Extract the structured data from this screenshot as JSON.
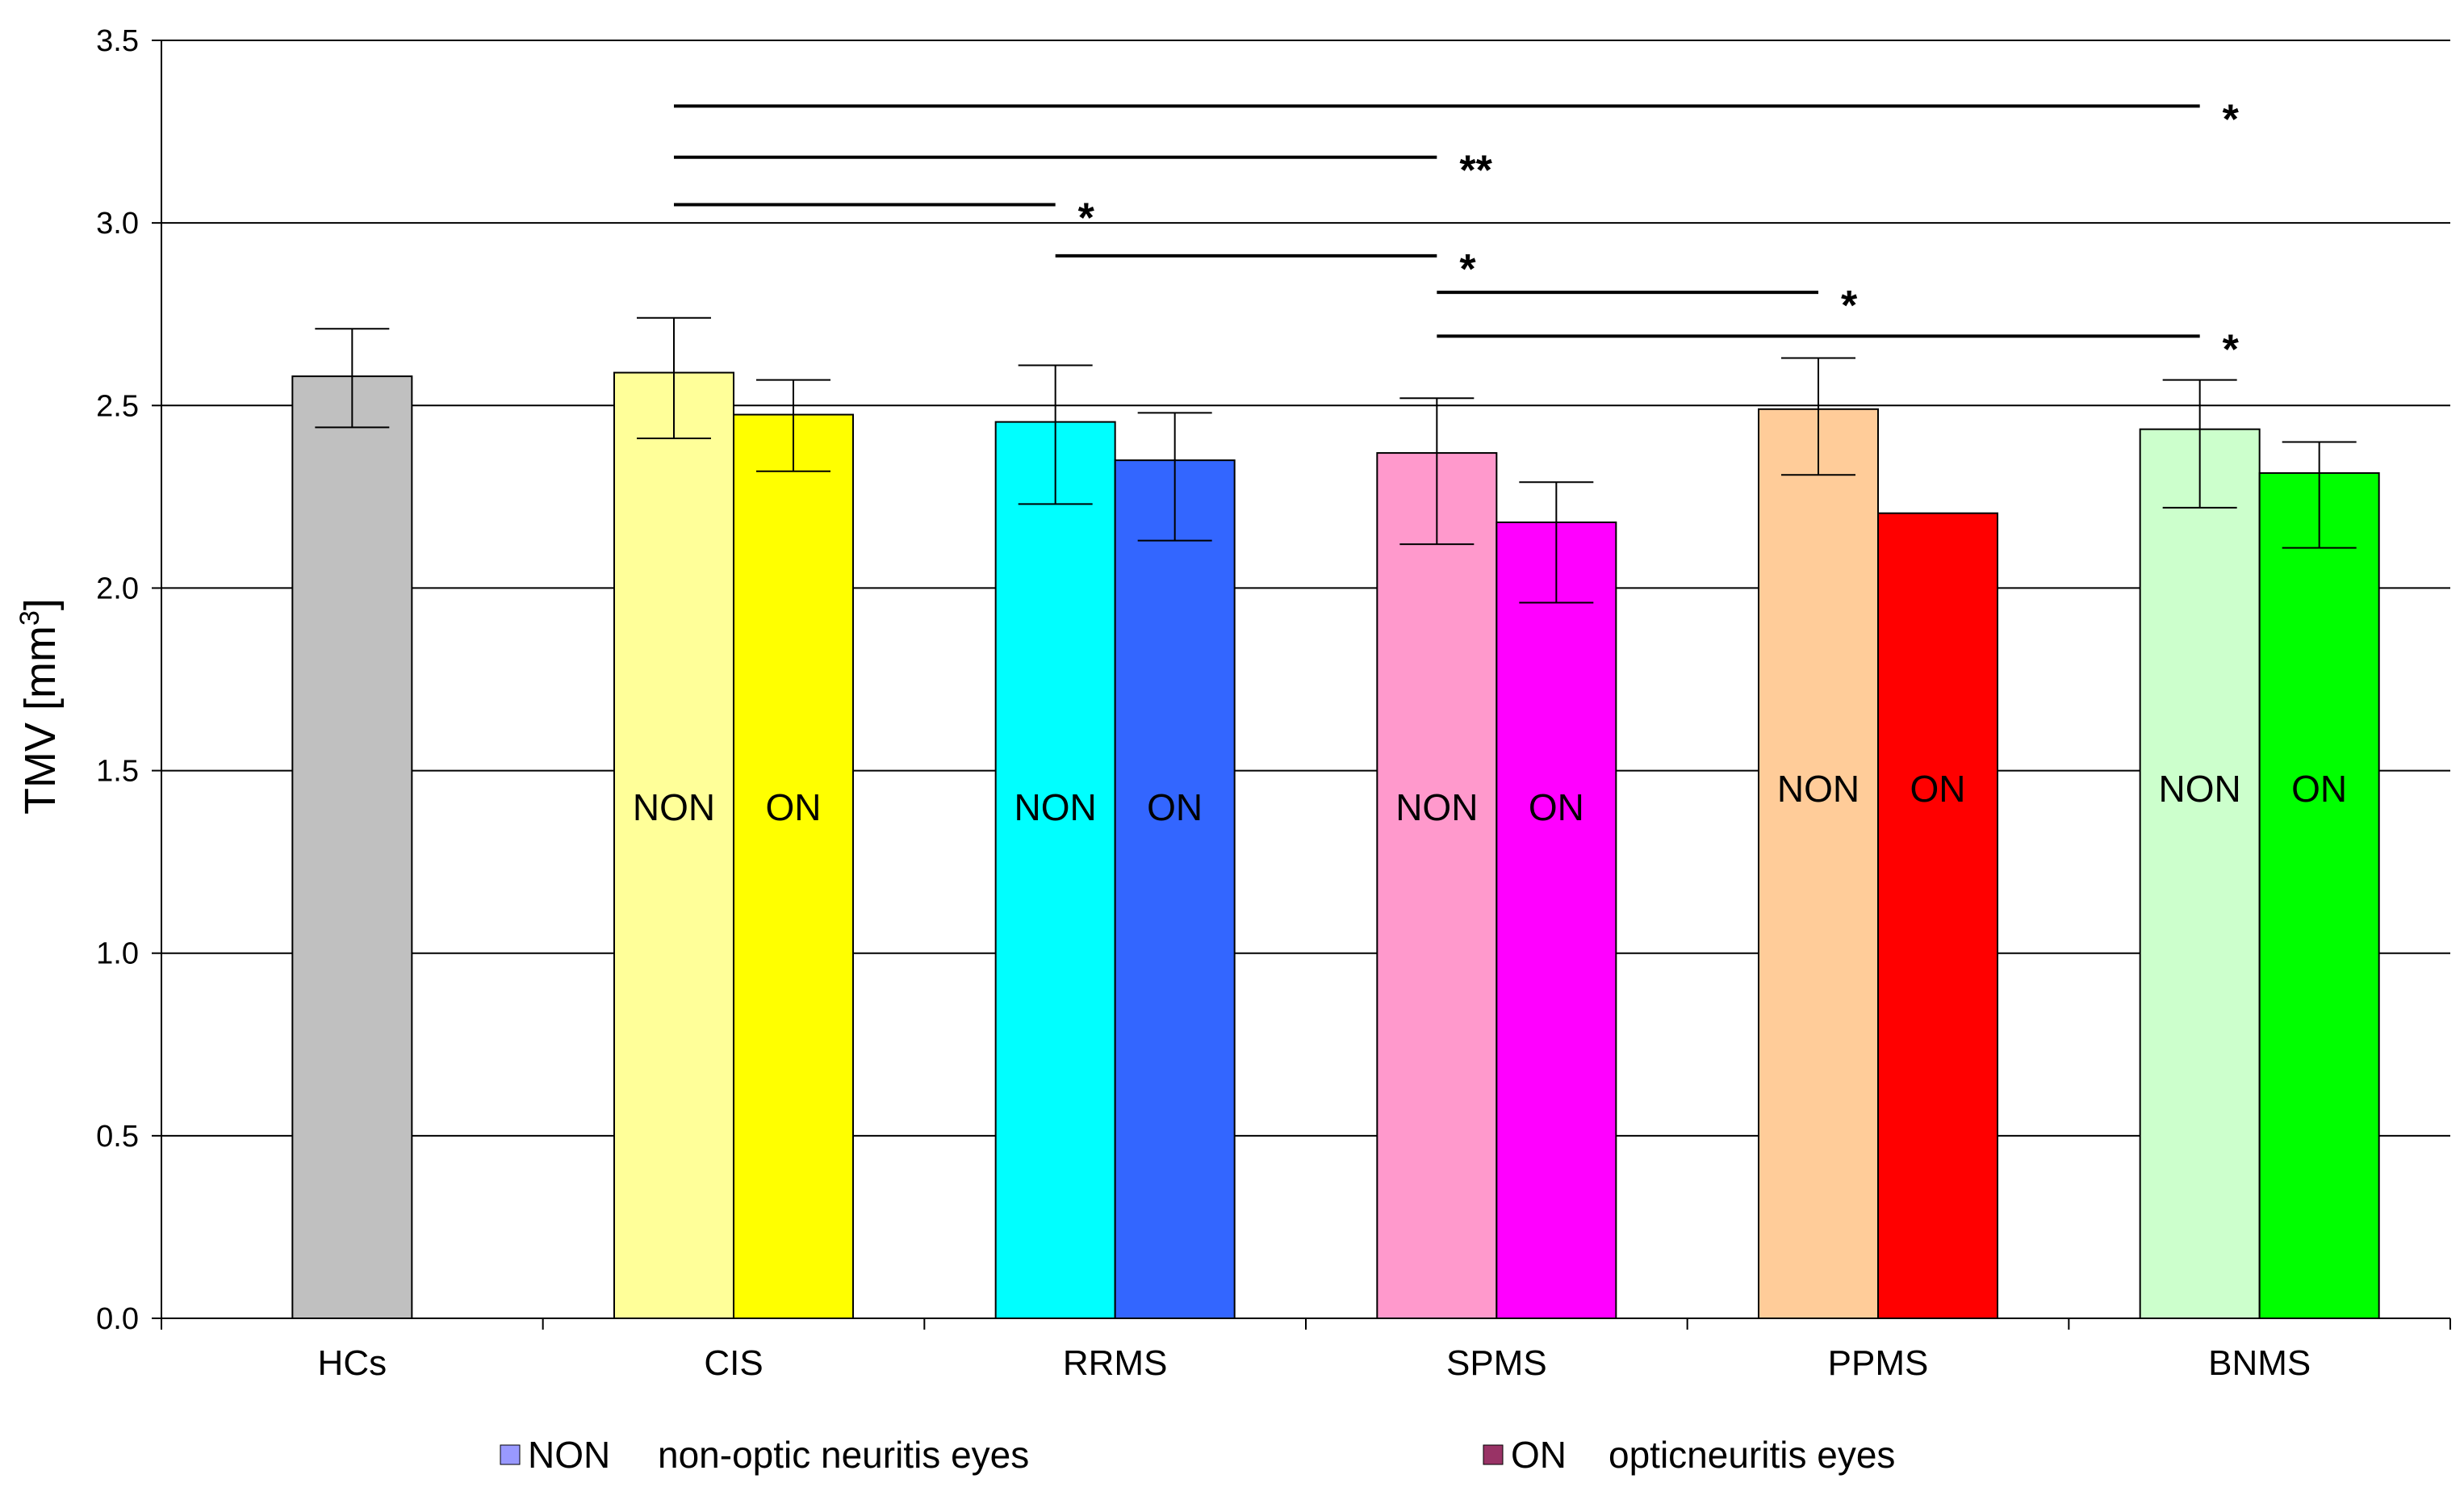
{
  "chart_data": {
    "type": "bar",
    "ylabel": "TMV [mm",
    "ylabel_sup": "3",
    "ylabel_close": "]",
    "ylim": [
      0,
      3.5
    ],
    "yticks": [
      0,
      0.5,
      1.0,
      1.5,
      2.0,
      2.5,
      3.0,
      3.5
    ],
    "ytick_labels": [
      "0.0",
      "0.5",
      "1.0",
      "1.5",
      "2.0",
      "2.5",
      "3.0",
      "3.5"
    ],
    "grid": true,
    "categories": [
      "HCs",
      "CIS",
      "RRMS",
      "SPMS",
      "PPMS",
      "BNMS"
    ],
    "bars": [
      {
        "group": "HCs",
        "label": "",
        "value": 2.58,
        "err_low": 2.44,
        "err_high": 2.71,
        "color": "#c0c0c0"
      },
      {
        "group": "CIS",
        "label": "NON",
        "value": 2.59,
        "err_low": 2.41,
        "err_high": 2.74,
        "color": "#ffff99"
      },
      {
        "group": "CIS",
        "label": "ON",
        "value": 2.475,
        "err_low": 2.32,
        "err_high": 2.57,
        "color": "#ffff00"
      },
      {
        "group": "RRMS",
        "label": "NON",
        "value": 2.455,
        "err_low": 2.23,
        "err_high": 2.61,
        "color": "#00ffff"
      },
      {
        "group": "RRMS",
        "label": "ON",
        "value": 2.35,
        "err_low": 2.13,
        "err_high": 2.48,
        "color": "#3366ff"
      },
      {
        "group": "SPMS",
        "label": "NON",
        "value": 2.37,
        "err_low": 2.12,
        "err_high": 2.52,
        "color": "#ff99cc"
      },
      {
        "group": "SPMS",
        "label": "ON",
        "value": 2.18,
        "err_low": 1.96,
        "err_high": 2.29,
        "color": "#ff00ff"
      },
      {
        "group": "PPMS",
        "label": "NON",
        "value": 2.49,
        "err_low": 2.31,
        "err_high": 2.63,
        "color": "#ffcc99"
      },
      {
        "group": "PPMS",
        "label": "ON",
        "value": 2.205,
        "err_low": null,
        "err_high": null,
        "color": "#ff0000"
      },
      {
        "group": "BNMS",
        "label": "NON",
        "value": 2.435,
        "err_low": 2.22,
        "err_high": 2.57,
        "color": "#ccffcc"
      },
      {
        "group": "BNMS",
        "label": "ON",
        "value": 2.315,
        "err_low": 2.11,
        "err_high": 2.4,
        "color": "#00ff00"
      }
    ],
    "inner_label_values": [
      1.4,
      1.4,
      1.4,
      1.4,
      1.4,
      1.4,
      1.4,
      1.4,
      1.45,
      1.45,
      1.45,
      1.45
    ],
    "significance": [
      {
        "from_bar": 1,
        "to_bar": 9,
        "y": 3.32,
        "label": "*"
      },
      {
        "from_bar": 1,
        "to_bar": 5,
        "y": 3.18,
        "label": "**"
      },
      {
        "from_bar": 1,
        "to_bar": 3,
        "y": 3.05,
        "label": "*"
      },
      {
        "from_bar": 3,
        "to_bar": 5,
        "y": 2.91,
        "label": "*"
      },
      {
        "from_bar": 5,
        "to_bar": 7,
        "y": 2.81,
        "label": "*"
      },
      {
        "from_bar": 5,
        "to_bar": 9,
        "y": 2.69,
        "label": "*"
      }
    ],
    "legend": [
      {
        "key": "NON",
        "description": "non-optic neuritis eyes",
        "color": "#9999ff"
      },
      {
        "key": "ON",
        "description": "opticneuritis eyes",
        "color": "#993366"
      }
    ]
  }
}
